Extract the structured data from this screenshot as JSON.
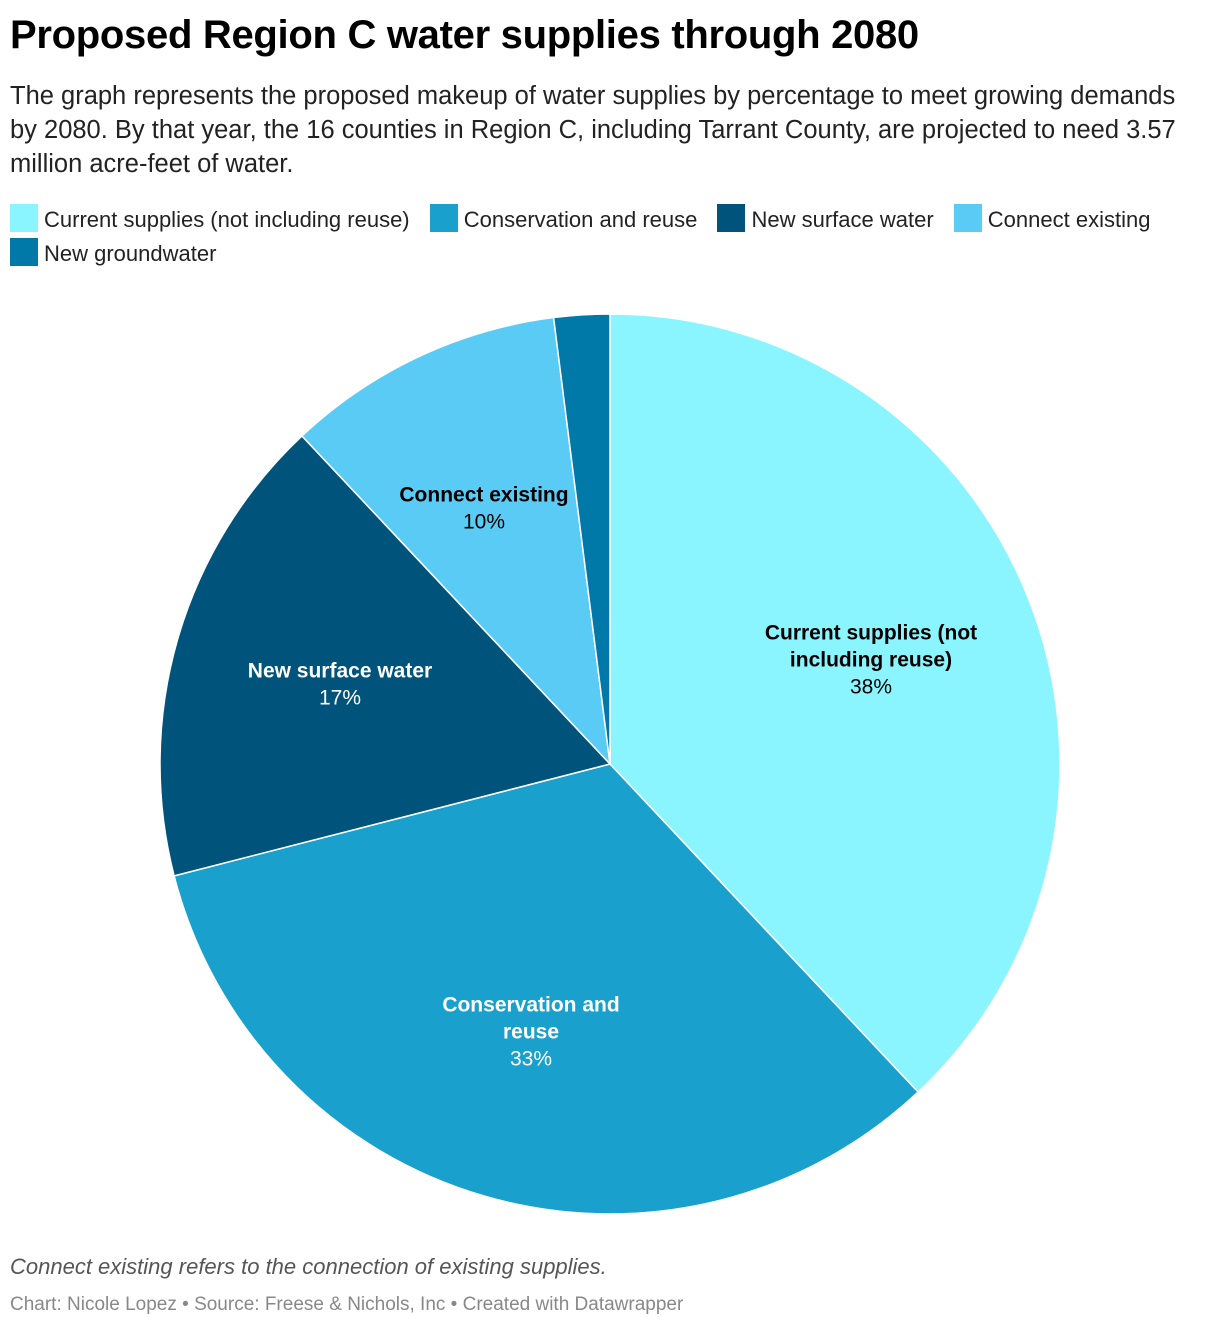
{
  "header": {
    "title": "Proposed Region C water supplies through 2080",
    "description": "The graph represents the proposed makeup of water supplies by percentage to meet growing demands by 2080. By that year, the 16 counties in Region C, including Tarrant County, are projected to need 3.57 million acre-feet of water."
  },
  "chart_data": {
    "type": "pie",
    "title": "Proposed Region C water supplies through 2080",
    "legend_position": "top",
    "categories": [
      "Current supplies (not including reuse)",
      "Conservation and reuse",
      "New surface water",
      "Connect existing",
      "New groundwater"
    ],
    "values": [
      38,
      33,
      17,
      10,
      2
    ],
    "labels": [
      {
        "name_lines": [
          "Current supplies (not",
          "including reuse)"
        ],
        "pct": "38%",
        "text_color": "#000000"
      },
      {
        "name_lines": [
          "Conservation and",
          "reuse"
        ],
        "pct": "33%",
        "text_color": "#ffffff"
      },
      {
        "name_lines": [
          "New surface water"
        ],
        "pct": "17%",
        "text_color": "#ffffff"
      },
      {
        "name_lines": [
          "Connect existing"
        ],
        "pct": "10%",
        "text_color": "#000000"
      },
      {
        "name_lines": [],
        "pct": "",
        "text_color": "#ffffff"
      }
    ],
    "colors": [
      "#8af5ff",
      "#1aa0cc",
      "#00537a",
      "#59cbf5",
      "#0078a8"
    ]
  },
  "legend": {
    "items": [
      {
        "label": "Current supplies (not including reuse)",
        "color": "#8af5ff"
      },
      {
        "label": "Conservation and reuse",
        "color": "#1aa0cc"
      },
      {
        "label": "New surface water",
        "color": "#00537a"
      },
      {
        "label": "Connect existing",
        "color": "#59cbf5"
      },
      {
        "label": "New groundwater",
        "color": "#0078a8"
      }
    ]
  },
  "footer": {
    "note": "Connect existing refers to the connection of existing supplies.",
    "byline": "Chart: Nicole Lopez • Source: Freese & Nichols, Inc • Created with Datawrapper"
  }
}
